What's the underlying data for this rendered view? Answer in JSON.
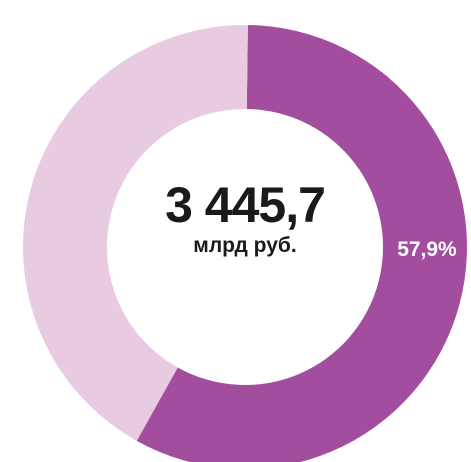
{
  "chart_data": {
    "type": "pie",
    "variant": "donut",
    "total": {
      "value": "3 445,7",
      "unit": "млрд руб."
    },
    "slices": [
      {
        "value": 57.9,
        "label": "57,9%",
        "color": "#a34d9f"
      },
      {
        "value": 42.1,
        "label": "",
        "color": "#e8cbe0"
      }
    ]
  }
}
